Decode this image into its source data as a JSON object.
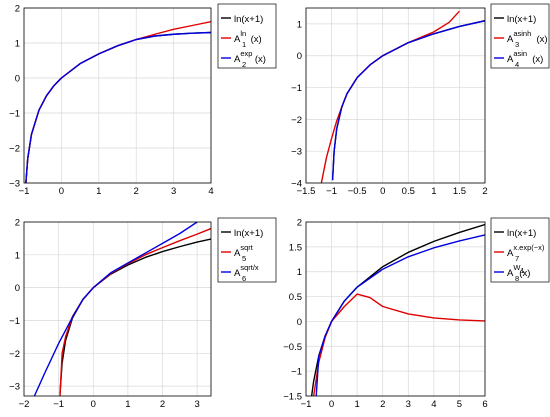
{
  "chart_data": [
    {
      "type": "line",
      "xlim": [
        -1,
        4
      ],
      "ylim": [
        -3,
        2
      ],
      "xticks": [
        "-1",
        "0",
        "1",
        "2",
        "3",
        "4"
      ],
      "yticks": [
        "-3",
        "-2",
        "-1",
        "0",
        "1",
        "2"
      ],
      "grid": true,
      "legend_position": "outside-right",
      "series": [
        {
          "label": "ln(x+1)",
          "color": "#000000",
          "x": [
            -0.95,
            -0.9,
            -0.8,
            -0.6,
            -0.4,
            -0.2,
            0,
            0.5,
            1,
            1.5,
            2,
            2.5,
            3,
            3.5,
            4
          ],
          "y": [
            -3.0,
            -2.3,
            -1.61,
            -0.92,
            -0.51,
            -0.22,
            0,
            0.41,
            0.69,
            0.92,
            1.1,
            1.2,
            1.25,
            1.28,
            1.3
          ]
        },
        {
          "label": "A_1^ln(x)",
          "base": "A",
          "sub": "1",
          "sup": "ln",
          "suffix": "(x)",
          "color": "#e00000",
          "x": [
            -0.95,
            -0.9,
            -0.8,
            -0.6,
            -0.4,
            -0.2,
            0,
            0.5,
            1,
            1.5,
            2,
            2.5,
            3,
            3.5,
            4
          ],
          "y": [
            -3.0,
            -2.3,
            -1.61,
            -0.92,
            -0.51,
            -0.22,
            0,
            0.41,
            0.69,
            0.92,
            1.1,
            1.25,
            1.39,
            1.5,
            1.61
          ]
        },
        {
          "label": "A_2^exp(x)",
          "base": "A",
          "sub": "2",
          "sup": "exp",
          "suffix": "(x)",
          "color": "#0000e0",
          "x": [
            -0.95,
            -0.9,
            -0.8,
            -0.6,
            -0.4,
            -0.2,
            0,
            0.5,
            1,
            1.5,
            2,
            2.5,
            3,
            3.5,
            4
          ],
          "y": [
            -3.0,
            -2.3,
            -1.61,
            -0.92,
            -0.51,
            -0.22,
            0,
            0.41,
            0.69,
            0.92,
            1.1,
            1.2,
            1.25,
            1.28,
            1.3
          ]
        }
      ]
    },
    {
      "type": "line",
      "xlim": [
        -1.5,
        2
      ],
      "ylim": [
        -4,
        1.5
      ],
      "xticks": [
        "-1.5",
        "-1",
        "-0.5",
        "0",
        "0.5",
        "1",
        "1.5",
        "2"
      ],
      "yticks": [
        "-4",
        "-3",
        "-2",
        "-1",
        "0",
        "1"
      ],
      "grid": true,
      "legend_position": "outside-right",
      "series": [
        {
          "label": "ln(x+1)",
          "color": "#000000",
          "x": [
            -0.98,
            -0.95,
            -0.9,
            -0.8,
            -0.7,
            -0.5,
            -0.25,
            0,
            0.5,
            1,
            1.5,
            2
          ],
          "y": [
            -3.91,
            -3.0,
            -2.3,
            -1.61,
            -1.2,
            -0.69,
            -0.29,
            0,
            0.41,
            0.69,
            0.92,
            1.1
          ]
        },
        {
          "label": "A_3^asinh(x)",
          "base": "A",
          "sub": "3",
          "sup": "asinh",
          "suffix": "(x)",
          "color": "#e00000",
          "x": [
            -1.2,
            -1.1,
            -1.0,
            -0.9,
            -0.8,
            -0.7,
            -0.5,
            -0.25,
            0,
            0.5,
            1,
            1.3,
            1.5
          ],
          "y": [
            -4.0,
            -3.2,
            -2.6,
            -2.05,
            -1.61,
            -1.2,
            -0.69,
            -0.29,
            0,
            0.41,
            0.75,
            1.05,
            1.4
          ]
        },
        {
          "label": "A_4^asin(x)",
          "base": "A",
          "sub": "4",
          "sup": "asin",
          "suffix": "(x)",
          "color": "#0000e0",
          "x": [
            -0.98,
            -0.95,
            -0.9,
            -0.8,
            -0.7,
            -0.5,
            -0.25,
            0,
            0.5,
            1,
            1.5,
            2
          ],
          "y": [
            -3.91,
            -3.0,
            -2.3,
            -1.61,
            -1.2,
            -0.69,
            -0.29,
            0,
            0.41,
            0.69,
            0.92,
            1.1
          ]
        }
      ]
    },
    {
      "type": "line",
      "xlim": [
        -2,
        3.4
      ],
      "ylim": [
        -3.3,
        2
      ],
      "xticks": [
        "-2",
        "-1",
        "0",
        "1",
        "2",
        "3"
      ],
      "yticks": [
        "-3",
        "-2",
        "-1",
        "0",
        "1",
        "2"
      ],
      "grid": true,
      "legend_position": "outside-right",
      "series": [
        {
          "label": "ln(x+1)",
          "color": "#000000",
          "x": [
            -0.96,
            -0.9,
            -0.8,
            -0.6,
            -0.3,
            0,
            0.5,
            1,
            1.5,
            2,
            2.5,
            3,
            3.4
          ],
          "y": [
            -3.22,
            -2.3,
            -1.61,
            -0.92,
            -0.36,
            0,
            0.41,
            0.69,
            0.92,
            1.1,
            1.25,
            1.39,
            1.48
          ]
        },
        {
          "label": "A_5^sqrt(x)",
          "base": "A",
          "sub": "5",
          "sup": "sqrt",
          "suffix": "",
          "color": "#e00000",
          "x": [
            -0.96,
            -0.9,
            -0.8,
            -0.6,
            -0.3,
            0,
            0.5,
            1,
            1.5,
            2,
            2.5,
            3,
            3.4
          ],
          "y": [
            -3.3,
            -2.0,
            -1.5,
            -0.88,
            -0.36,
            0,
            0.43,
            0.73,
            1.0,
            1.22,
            1.43,
            1.63,
            1.8
          ]
        },
        {
          "label": "A_6^sqrt/x(x)",
          "base": "A",
          "sub": "6",
          "sup": "sqrt/x",
          "suffix": "",
          "color": "#0000e0",
          "x": [
            -1.7,
            -1.4,
            -1.0,
            -0.6,
            -0.3,
            0,
            0.5,
            1,
            1.5,
            2,
            2.5,
            3
          ],
          "y": [
            -3.3,
            -2.6,
            -1.7,
            -0.9,
            -0.36,
            0,
            0.45,
            0.75,
            1.05,
            1.35,
            1.65,
            2.0
          ]
        }
      ]
    },
    {
      "type": "line",
      "xlim": [
        -1,
        6
      ],
      "ylim": [
        -1.5,
        2
      ],
      "xticks": [
        "-1",
        "0",
        "1",
        "2",
        "3",
        "4",
        "5",
        "6"
      ],
      "yticks": [
        "-1.5",
        "-1",
        "-0.5",
        "0",
        "0.5",
        "1",
        "1.5",
        "2"
      ],
      "grid": true,
      "legend_position": "outside-right",
      "series": [
        {
          "label": "ln(x+1)",
          "color": "#000000",
          "x": [
            -0.78,
            -0.7,
            -0.5,
            -0.25,
            0,
            0.5,
            1,
            2,
            3,
            4,
            5,
            6
          ],
          "y": [
            -1.5,
            -1.2,
            -0.69,
            -0.29,
            0,
            0.41,
            0.69,
            1.1,
            1.39,
            1.61,
            1.79,
            1.95
          ]
        },
        {
          "label": "A_7^x.exp(-x)(x)",
          "base": "A",
          "sub": "7",
          "sup": "x.exp(−x)",
          "suffix": "(x)",
          "color": "#e00000",
          "x": [
            -0.7,
            -0.5,
            -0.25,
            0,
            0.5,
            1,
            1.5,
            2,
            3,
            4,
            5,
            6
          ],
          "y": [
            -1.5,
            -0.82,
            -0.32,
            0,
            0.3,
            0.55,
            0.48,
            0.3,
            0.15,
            0.07,
            0.03,
            0.01
          ]
        },
        {
          "label": "A_8^W_1(x)",
          "base": "A",
          "sub": "8",
          "sup": "W",
          "supsub": "1",
          "suffix": "(x)",
          "color": "#0000e0",
          "x": [
            -0.6,
            -0.5,
            -0.25,
            0,
            0.5,
            1,
            2,
            3,
            4,
            5,
            6
          ],
          "y": [
            -1.5,
            -0.7,
            -0.29,
            0,
            0.41,
            0.69,
            1.05,
            1.3,
            1.48,
            1.62,
            1.74
          ]
        }
      ]
    }
  ]
}
